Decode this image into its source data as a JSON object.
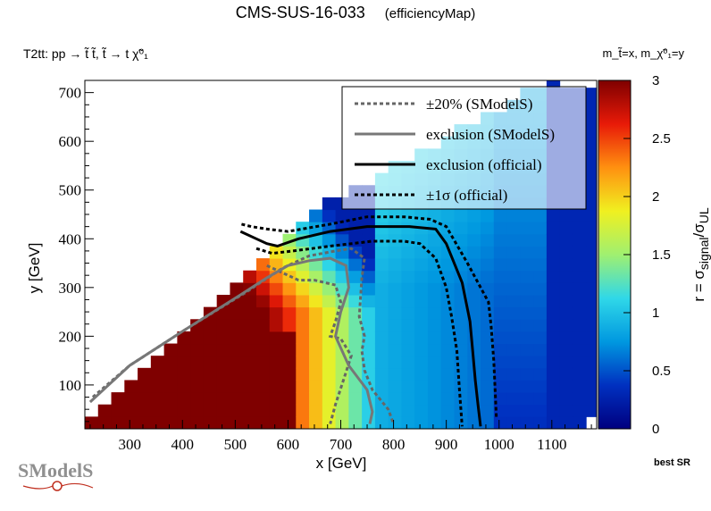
{
  "header": {
    "title": "CMS-SUS-16-033",
    "subtitle": "(efficiencyMap)",
    "process": "T2tt: pp → t̃ t̃, t̃ → t χ̃⁰₁",
    "mass_label": "m_t̃=x, m_χ̃⁰₁=y",
    "best_sr": "best SR"
  },
  "logo": {
    "text": "SModelS"
  },
  "chart_data": {
    "type": "heatmap",
    "title": "CMS-SUS-16-033 (efficiencyMap)",
    "xlabel": "x [GeV]",
    "ylabel": "y [GeV]",
    "xlim": [
      215,
      1185
    ],
    "ylim": [
      10,
      725
    ],
    "xticks": [
      300,
      400,
      500,
      600,
      700,
      800,
      900,
      1000,
      1100
    ],
    "yticks": [
      100,
      200,
      300,
      400,
      500,
      600,
      700
    ],
    "colorbar": {
      "label": "r = σ_signal/σ_UL",
      "range": [
        0,
        3
      ],
      "ticks": [
        0,
        0.5,
        1,
        1.5,
        2,
        2.5,
        3
      ],
      "colors": [
        "#00007f",
        "#0030c0",
        "#0098e0",
        "#30d8e8",
        "#a0f070",
        "#f0f020",
        "#ff9010",
        "#e81a08",
        "#7f0000"
      ]
    },
    "heatmap": {
      "bin_width": 25,
      "description": "r value on a grid of (x, y) mass points; saturated (r>=3) at low x, falling off near x≈650-700, r≈0.3-0.6 at high x",
      "region": "y <= x - 190 roughly, y upper boundary ≈ 725 at x≈1100"
    },
    "contours": [
      {
        "name": "±20% (SModelS)",
        "style": "dotted",
        "color": "#666666",
        "x": [
          230,
          300,
          400,
          520,
          590,
          640,
          690,
          720,
          745,
          740,
          735,
          745,
          740,
          745,
          760,
          790,
          800
        ],
        "y": [
          75,
          140,
          210,
          290,
          340,
          365,
          375,
          380,
          360,
          320,
          240,
          200,
          170,
          130,
          90,
          50,
          20
        ]
      },
      {
        "name": "±20% (SModelS) lower",
        "style": "dotted",
        "color": "#666666",
        "x": [
          560,
          620,
          650,
          690,
          700,
          690,
          680,
          700,
          720,
          705,
          690,
          680
        ],
        "y": [
          345,
          315,
          315,
          305,
          270,
          230,
          200,
          195,
          160,
          110,
          60,
          20
        ]
      },
      {
        "name": "exclusion (SModelS)",
        "style": "solid",
        "color": "#777777",
        "x": [
          225,
          300,
          400,
          510,
          560,
          600,
          640,
          680,
          710,
          715,
          700,
          690,
          715,
          750,
          760,
          755
        ],
        "y": [
          65,
          140,
          210,
          285,
          320,
          345,
          355,
          360,
          345,
          300,
          250,
          200,
          140,
          90,
          45,
          20
        ]
      },
      {
        "name": "exclusion (official)",
        "style": "solid",
        "color": "#000000",
        "x": [
          510,
          540,
          560,
          580,
          620,
          680,
          750,
          830,
          880,
          900,
          930,
          945,
          950,
          955,
          960,
          965
        ],
        "y": [
          415,
          400,
          390,
          385,
          400,
          415,
          425,
          425,
          420,
          390,
          310,
          230,
          170,
          110,
          60,
          15
        ]
      },
      {
        "name": "±1σ (official) upper",
        "style": "dotted",
        "color": "#000000",
        "x": [
          512,
          530,
          560,
          600,
          680,
          750,
          820,
          870,
          900,
          940,
          980,
          985,
          990,
          995
        ],
        "y": [
          430,
          425,
          420,
          415,
          430,
          445,
          445,
          440,
          425,
          350,
          270,
          220,
          150,
          30
        ]
      },
      {
        "name": "±1σ (official) lower",
        "style": "dotted",
        "color": "#000000",
        "x": [
          540,
          570,
          610,
          680,
          760,
          820,
          850,
          880,
          900,
          910,
          920,
          925,
          930
        ],
        "y": [
          380,
          370,
          375,
          385,
          395,
          395,
          390,
          360,
          300,
          240,
          170,
          90,
          15
        ]
      }
    ],
    "legend": {
      "position": "top-right",
      "entries": [
        "±20% (SModelS)",
        "exclusion (SModelS)",
        "exclusion (official)",
        "±1σ (official)"
      ]
    }
  }
}
